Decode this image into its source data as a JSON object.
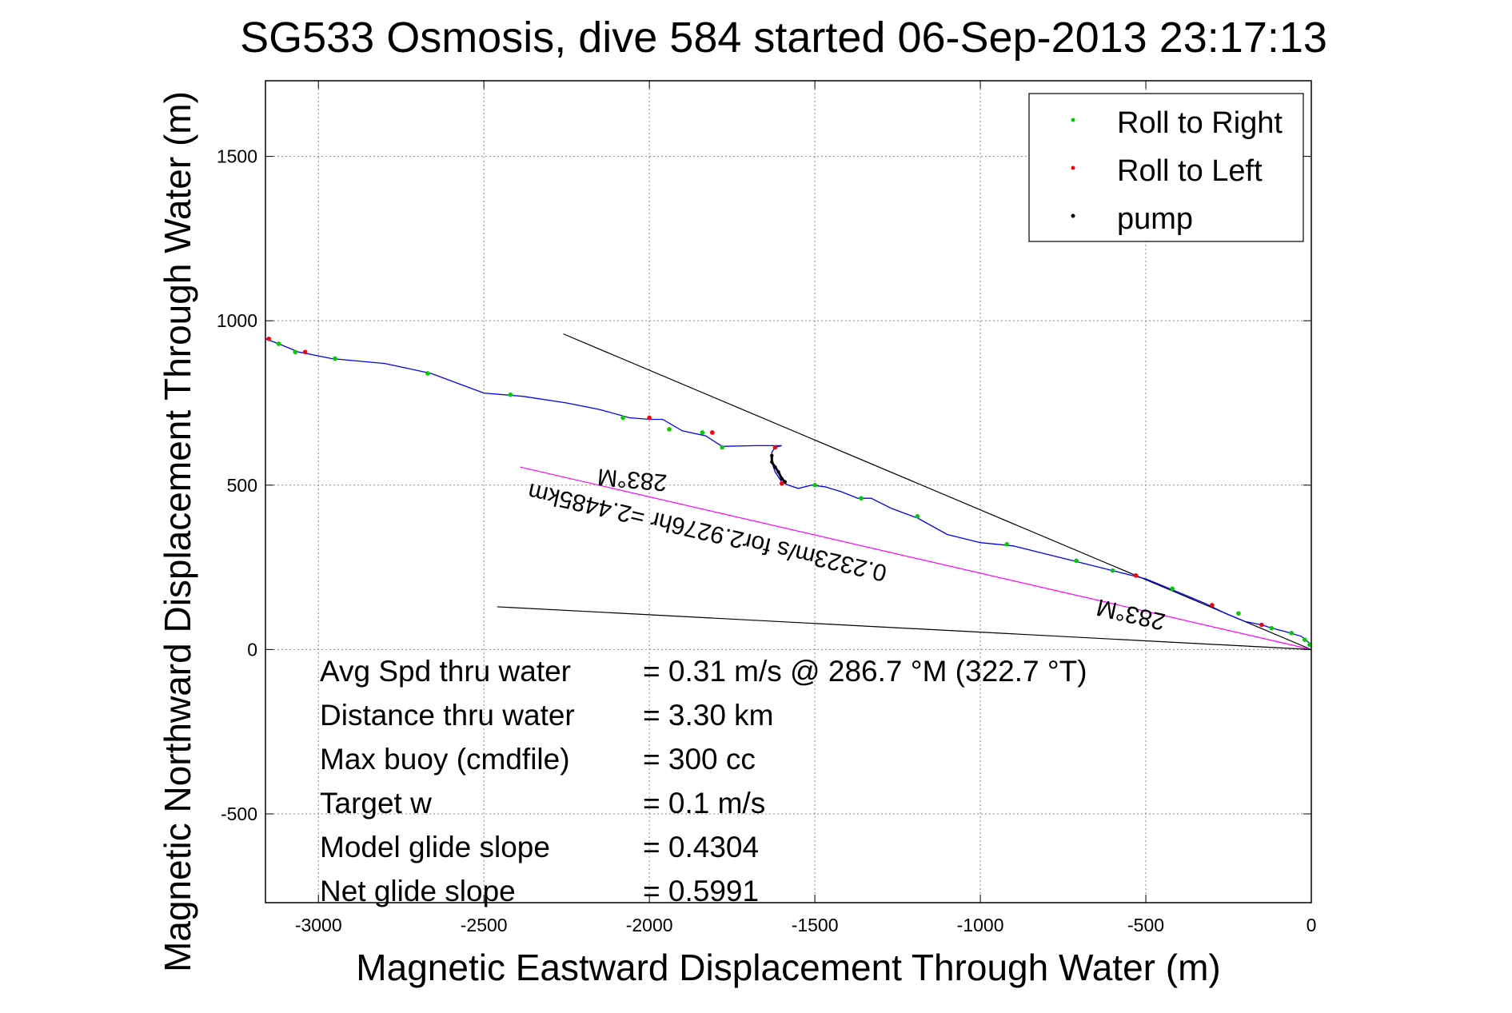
{
  "chart_data": {
    "type": "line",
    "title": "SG533 Osmosis, dive 584 started 06-Sep-2013 23:17:13",
    "xlabel": "Magnetic Eastward Displacement Through Water (m)",
    "ylabel": "Magnetic Northward Displacement Through Water (m)",
    "xlim": [
      -3160,
      0
    ],
    "ylim": [
      -770,
      1730
    ],
    "xticks": [
      -3000,
      -2500,
      -2000,
      -1500,
      -1000,
      -500,
      0
    ],
    "yticks": [
      -500,
      0,
      500,
      1000,
      1500
    ],
    "xtick_labels": [
      "-3000",
      "-2500",
      "-2000",
      "-1500",
      "-1000",
      "-500",
      "0"
    ],
    "ytick_labels": [
      "-500",
      "0",
      "500",
      "1000",
      "1500"
    ],
    "grid": true,
    "legend_position": "top-right",
    "legend": [
      {
        "label": "Roll to Right",
        "color": "#00cc00"
      },
      {
        "label": "Roll to Left",
        "color": "#ff0000"
      },
      {
        "label": "pump",
        "color": "#000000"
      }
    ],
    "track": {
      "color": "#0000ff",
      "x": [
        0,
        -30,
        -80,
        -120,
        -150,
        -200,
        -260,
        -320,
        -380,
        -440,
        -500,
        -600,
        -700,
        -800,
        -900,
        -1000,
        -1100,
        -1190,
        -1270,
        -1330,
        -1370,
        -1420,
        -1470,
        -1510,
        -1550,
        -1580,
        -1600,
        -1620,
        -1630,
        -1630,
        -1620,
        -1600,
        -1680,
        -1780,
        -1830,
        -1900,
        -1960,
        -2000,
        -2060,
        -2150,
        -2250,
        -2380,
        -2500,
        -2660,
        -2800,
        -2960,
        -3060,
        -3120,
        -3160
      ],
      "y": [
        15,
        40,
        55,
        65,
        75,
        85,
        110,
        140,
        165,
        190,
        215,
        240,
        265,
        290,
        315,
        325,
        350,
        400,
        430,
        460,
        460,
        480,
        495,
        500,
        490,
        500,
        510,
        540,
        570,
        600,
        615,
        620,
        620,
        618,
        650,
        665,
        700,
        700,
        705,
        730,
        750,
        770,
        780,
        840,
        870,
        885,
        905,
        930,
        945
      ]
    },
    "roll_to_right": {
      "x": [
        -5,
        -20,
        -60,
        -120,
        -220,
        -420,
        -600,
        -710,
        -920,
        -1190,
        -1360,
        -1500,
        -1780,
        -1840,
        -1940,
        -2080,
        -2420,
        -2670,
        -2950,
        -3070,
        -3120
      ],
      "y": [
        15,
        30,
        50,
        65,
        110,
        185,
        240,
        270,
        320,
        405,
        460,
        500,
        615,
        660,
        670,
        705,
        775,
        840,
        885,
        905,
        930
      ]
    },
    "roll_to_left": {
      "x": [
        -150,
        -300,
        -530,
        -1600,
        -1620,
        -1810,
        -2000,
        -3040,
        -3150
      ],
      "y": [
        75,
        135,
        225,
        505,
        615,
        660,
        705,
        905,
        945
      ]
    },
    "pump": {
      "x": [
        -1590,
        -1600,
        -1610,
        -1620,
        -1630,
        -1630
      ],
      "y": [
        510,
        520,
        540,
        555,
        570,
        590
      ]
    },
    "reference_lines": [
      {
        "color": "#000000",
        "x": [
          0,
          -2260
        ],
        "y": [
          0,
          960
        ]
      },
      {
        "color": "#000000",
        "x": [
          0,
          -2460
        ],
        "y": [
          0,
          130
        ]
      },
      {
        "color": "#ff00ff",
        "x": [
          0,
          -2390
        ],
        "y": [
          0,
          555
        ]
      }
    ],
    "annotations": [
      {
        "text": "283°M",
        "x": -2050,
        "y": 540,
        "rotation": 185
      },
      {
        "text": "0.2323m/s for2.9276hr =2.4485km",
        "x": -1820,
        "y": 380,
        "rotation": 193
      },
      {
        "text": "283°M",
        "x": -540,
        "y": 130,
        "rotation": 193
      }
    ],
    "stats": [
      {
        "label": "Avg Spd thru water",
        "value": "=  0.31 m/s @ 286.7 °M (322.7 °T)"
      },
      {
        "label": "Distance thru water",
        "value": "=  3.30 km"
      },
      {
        "label": "Max buoy (cmdfile)",
        "value": "= 300 cc"
      },
      {
        "label": "Target w",
        "value": "= 0.1 m/s"
      },
      {
        "label": "Model glide slope",
        "value": "= 0.4304"
      },
      {
        "label": "Net glide slope",
        "value": "= 0.5991"
      }
    ]
  }
}
